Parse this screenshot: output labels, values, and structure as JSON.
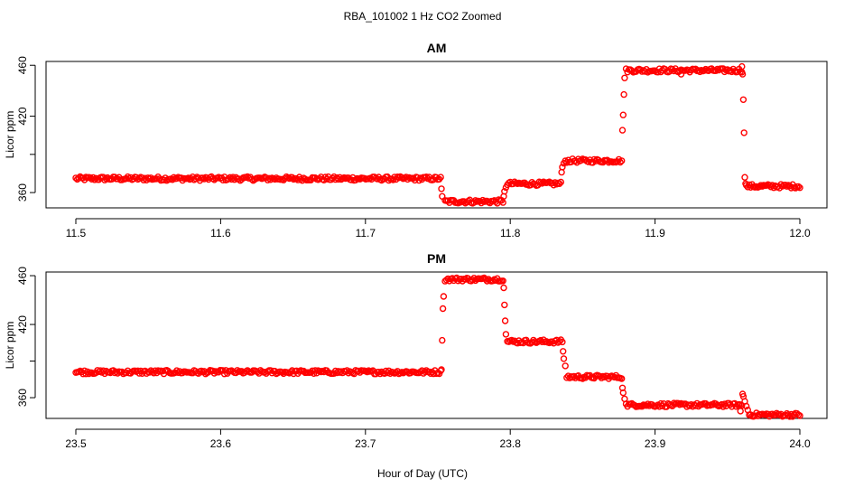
{
  "figure": {
    "title": "RBA_101002  1 Hz CO2 Zoomed",
    "xlabel": "Hour of Day (UTC)"
  },
  "colors": {
    "points": "#ff0000",
    "axis": "#000000",
    "background": "#ffffff"
  },
  "chart_data": [
    {
      "type": "scatter",
      "title": "AM",
      "ylabel": "Licor ppm",
      "xlim": [
        11.5,
        12.0
      ],
      "ylim": [
        348,
        463
      ],
      "x_ticks": [
        11.5,
        11.6,
        11.7,
        11.8,
        11.9,
        12.0
      ],
      "x_tick_labels": [
        "11.5",
        "11.6",
        "11.7",
        "11.8",
        "11.9",
        "12.0"
      ],
      "y_ticks": [
        360,
        390,
        420,
        460
      ],
      "y_tick_labels": [
        "360",
        "",
        "420",
        "460"
      ],
      "grid": false,
      "marker": "open-circle",
      "levels": [
        {
          "x_start": 11.5,
          "x_end": 11.752,
          "y": 371
        },
        {
          "x_start": 11.755,
          "x_end": 11.795,
          "y": 353
        },
        {
          "x_start": 11.798,
          "x_end": 11.835,
          "y": 367
        },
        {
          "x_start": 11.838,
          "x_end": 11.877,
          "y": 385
        },
        {
          "x_start": 11.88,
          "x_end": 11.96,
          "y": 456
        },
        {
          "x_start": 11.963,
          "x_end": 12.0,
          "y": 365
        }
      ],
      "transitions": [
        {
          "x": 11.7525,
          "y": 363
        },
        {
          "x": 11.753,
          "y": 357
        },
        {
          "x": 11.7955,
          "y": 357
        },
        {
          "x": 11.796,
          "y": 361
        },
        {
          "x": 11.797,
          "y": 364
        },
        {
          "x": 11.8355,
          "y": 376
        },
        {
          "x": 11.836,
          "y": 380
        },
        {
          "x": 11.837,
          "y": 383
        },
        {
          "x": 11.8775,
          "y": 409
        },
        {
          "x": 11.878,
          "y": 421
        },
        {
          "x": 11.8785,
          "y": 437
        },
        {
          "x": 11.879,
          "y": 450
        },
        {
          "x": 11.9605,
          "y": 453
        },
        {
          "x": 11.961,
          "y": 433
        },
        {
          "x": 11.9615,
          "y": 407
        },
        {
          "x": 11.962,
          "y": 372
        },
        {
          "x": 11.9625,
          "y": 367
        }
      ],
      "outliers": [
        {
          "x": 11.918,
          "y": 453
        },
        {
          "x": 11.96,
          "y": 459
        }
      ]
    },
    {
      "type": "scatter",
      "title": "PM",
      "ylabel": "Licor ppm",
      "xlim": [
        23.5,
        24.0
      ],
      "ylim": [
        343,
        463
      ],
      "x_ticks": [
        23.5,
        23.6,
        23.7,
        23.8,
        23.9,
        24.0
      ],
      "x_tick_labels": [
        "23.5",
        "23.6",
        "23.7",
        "23.8",
        "23.9",
        "24.0"
      ],
      "y_ticks": [
        360,
        390,
        420,
        460
      ],
      "y_tick_labels": [
        "360",
        "",
        "420",
        "460"
      ],
      "grid": false,
      "marker": "open-circle",
      "levels": [
        {
          "x_start": 23.5,
          "x_end": 23.752,
          "y": 381
        },
        {
          "x_start": 23.755,
          "x_end": 23.795,
          "y": 457
        },
        {
          "x_start": 23.798,
          "x_end": 23.836,
          "y": 406
        },
        {
          "x_start": 23.839,
          "x_end": 23.877,
          "y": 377
        },
        {
          "x_start": 23.88,
          "x_end": 23.96,
          "y": 354
        },
        {
          "x_start": 23.965,
          "x_end": 24.0,
          "y": 346
        }
      ],
      "transitions": [
        {
          "x": 23.7525,
          "y": 383
        },
        {
          "x": 23.753,
          "y": 407
        },
        {
          "x": 23.7535,
          "y": 433
        },
        {
          "x": 23.754,
          "y": 443
        },
        {
          "x": 23.7955,
          "y": 450
        },
        {
          "x": 23.796,
          "y": 436
        },
        {
          "x": 23.7965,
          "y": 423
        },
        {
          "x": 23.797,
          "y": 412
        },
        {
          "x": 23.8365,
          "y": 398
        },
        {
          "x": 23.837,
          "y": 392
        },
        {
          "x": 23.838,
          "y": 386
        },
        {
          "x": 23.8775,
          "y": 368
        },
        {
          "x": 23.878,
          "y": 364
        },
        {
          "x": 23.879,
          "y": 359
        },
        {
          "x": 23.9605,
          "y": 363
        },
        {
          "x": 23.961,
          "y": 361
        },
        {
          "x": 23.962,
          "y": 357
        },
        {
          "x": 23.963,
          "y": 353
        },
        {
          "x": 23.964,
          "y": 350
        }
      ],
      "outliers": [
        {
          "x": 23.959,
          "y": 349
        }
      ]
    }
  ]
}
